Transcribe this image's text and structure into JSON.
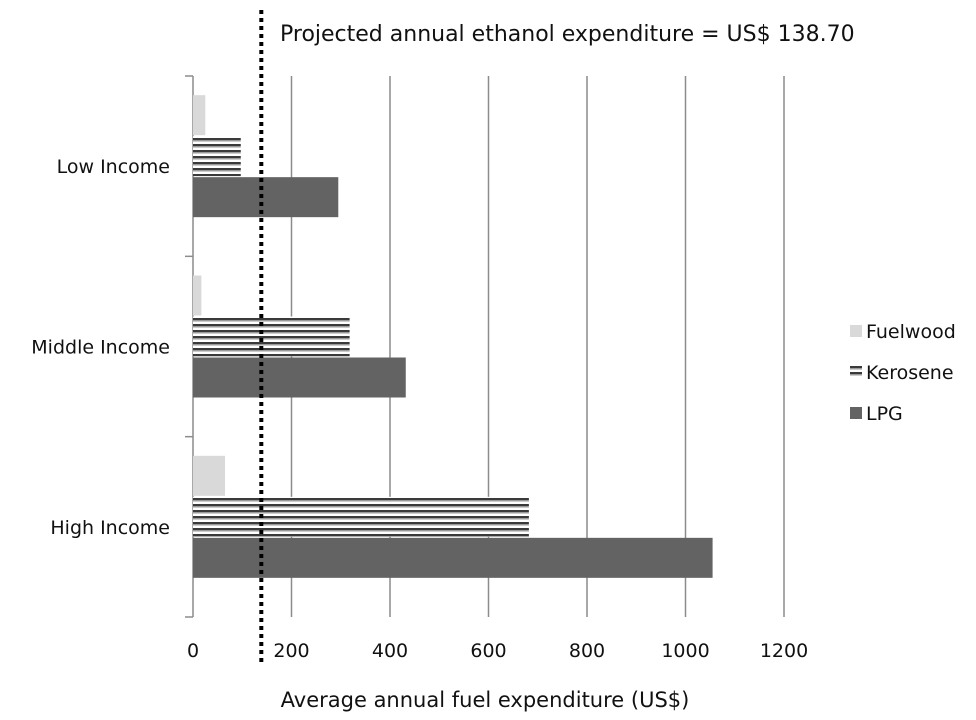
{
  "chart_data": {
    "type": "bar",
    "orientation": "horizontal",
    "categories": [
      "Low Income",
      "Middle Income",
      "High Income"
    ],
    "series": [
      {
        "name": "Fuelwood",
        "values": [
          25,
          17,
          65
        ],
        "color": "#d9d9d9",
        "pattern": "solid"
      },
      {
        "name": "Kerosene",
        "values": [
          97,
          318,
          682
        ],
        "color": "#7f7f7f",
        "pattern": "horizontal-stripes"
      },
      {
        "name": "LPG",
        "values": [
          295,
          432,
          1055
        ],
        "color": "#636363",
        "pattern": "solid"
      }
    ],
    "xlabel": "Average annual fuel expenditure (US$)",
    "ylabel": "",
    "xlim": [
      0,
      1200
    ],
    "xticks": [
      "0",
      "200",
      "400",
      "600",
      "800",
      "1000",
      "1200"
    ],
    "grid": "vertical",
    "legend_position": "right",
    "reference_line": {
      "value": 138.7,
      "style": "dotted",
      "label": "Projected annual ethanol expenditure = US$ 138.70"
    }
  }
}
